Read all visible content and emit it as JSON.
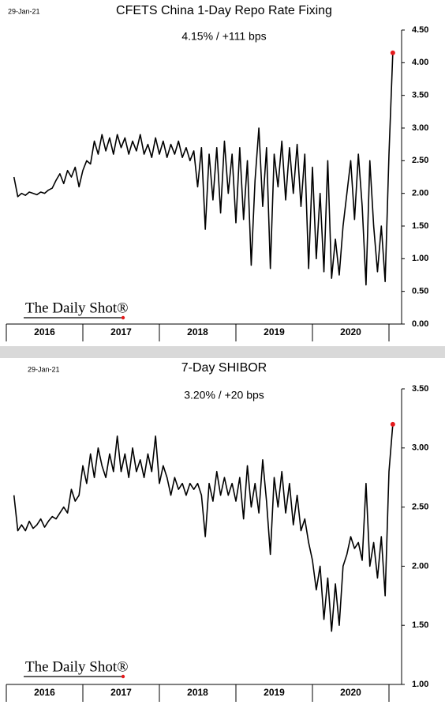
{
  "chart_data": [
    {
      "type": "line",
      "date": "29-Jan-21",
      "title": "CFETS China 1-Day Repo Rate Fixing",
      "subtitle": "4.15%  /  +111 bps",
      "logo": "The Daily Shot®",
      "x_labels": [
        "2016",
        "2017",
        "2018",
        "2019",
        "2020"
      ],
      "xlim": [
        2016,
        2021.1
      ],
      "xticks": [
        2016,
        2017,
        2018,
        2019,
        2020,
        2021
      ],
      "ylim": [
        0,
        4.5
      ],
      "yticks": [
        {
          "value": 0,
          "label": "0.00"
        },
        {
          "value": 0.5,
          "label": "0.50"
        },
        {
          "value": 1,
          "label": "1.00"
        },
        {
          "value": 1.5,
          "label": "1.50"
        },
        {
          "value": 2,
          "label": "2.00"
        },
        {
          "value": 2.5,
          "label": "2.50"
        },
        {
          "value": 3,
          "label": "3.00"
        },
        {
          "value": 3.5,
          "label": "3.50"
        },
        {
          "value": 4,
          "label": "4.00"
        },
        {
          "value": 4.5,
          "label": "4.50"
        }
      ],
      "color": "#000000",
      "end_marker_color": "#e41a1c",
      "x": [
        2016.1,
        2016.15,
        2016.2,
        2016.25,
        2016.3,
        2016.35,
        2016.4,
        2016.45,
        2016.5,
        2016.55,
        2016.6,
        2016.65,
        2016.7,
        2016.75,
        2016.8,
        2016.85,
        2016.9,
        2016.95,
        2017.0,
        2017.05,
        2017.1,
        2017.15,
        2017.2,
        2017.25,
        2017.3,
        2017.35,
        2017.4,
        2017.45,
        2017.5,
        2017.55,
        2017.6,
        2017.65,
        2017.7,
        2017.75,
        2017.8,
        2017.85,
        2017.9,
        2017.95,
        2018.0,
        2018.05,
        2018.1,
        2018.15,
        2018.2,
        2018.25,
        2018.3,
        2018.35,
        2018.4,
        2018.45,
        2018.5,
        2018.55,
        2018.6,
        2018.65,
        2018.7,
        2018.75,
        2018.8,
        2018.85,
        2018.9,
        2018.95,
        2019.0,
        2019.05,
        2019.1,
        2019.15,
        2019.2,
        2019.25,
        2019.3,
        2019.35,
        2019.4,
        2019.45,
        2019.5,
        2019.55,
        2019.6,
        2019.65,
        2019.7,
        2019.75,
        2019.8,
        2019.85,
        2019.9,
        2019.95,
        2020.0,
        2020.05,
        2020.1,
        2020.15,
        2020.2,
        2020.25,
        2020.3,
        2020.35,
        2020.4,
        2020.45,
        2020.5,
        2020.55,
        2020.6,
        2020.65,
        2020.7,
        2020.75,
        2020.8,
        2020.85,
        2020.9,
        2020.95,
        2021.0,
        2021.05
      ],
      "values": [
        2.25,
        1.95,
        2.0,
        1.97,
        2.02,
        2.0,
        1.98,
        2.02,
        2.0,
        2.05,
        2.08,
        2.2,
        2.3,
        2.15,
        2.35,
        2.25,
        2.4,
        2.1,
        2.35,
        2.5,
        2.45,
        2.8,
        2.6,
        2.9,
        2.65,
        2.85,
        2.6,
        2.9,
        2.7,
        2.85,
        2.6,
        2.8,
        2.65,
        2.9,
        2.6,
        2.75,
        2.55,
        2.85,
        2.6,
        2.8,
        2.55,
        2.75,
        2.6,
        2.8,
        2.55,
        2.7,
        2.5,
        2.65,
        2.1,
        2.7,
        1.45,
        2.6,
        1.9,
        2.7,
        1.7,
        2.8,
        2.0,
        2.6,
        1.55,
        2.7,
        1.6,
        2.5,
        0.9,
        2.2,
        3.0,
        1.8,
        2.7,
        0.85,
        2.6,
        2.1,
        2.8,
        1.9,
        2.7,
        2.0,
        2.75,
        1.8,
        2.6,
        0.85,
        2.4,
        1.0,
        2.0,
        0.8,
        2.5,
        0.7,
        1.3,
        0.75,
        1.5,
        2.0,
        2.5,
        1.6,
        2.6,
        1.8,
        0.6,
        2.5,
        1.5,
        0.8,
        1.5,
        0.65,
        2.6,
        4.15
      ]
    },
    {
      "type": "line",
      "date": "29-Jan-21",
      "title": "7-Day SHIBOR",
      "subtitle": "3.20%  /  +20 bps",
      "logo": "The Daily Shot®",
      "x_labels": [
        "2016",
        "2017",
        "2018",
        "2019",
        "2020"
      ],
      "xlim": [
        2016,
        2021.1
      ],
      "xticks": [
        2016,
        2017,
        2018,
        2019,
        2020,
        2021
      ],
      "ylim": [
        1,
        3.5
      ],
      "yticks": [
        {
          "value": 1,
          "label": "1.00"
        },
        {
          "value": 1.5,
          "label": "1.50"
        },
        {
          "value": 2,
          "label": "2.00"
        },
        {
          "value": 2.5,
          "label": "2.50"
        },
        {
          "value": 3,
          "label": "3.00"
        },
        {
          "value": 3.5,
          "label": "3.50"
        }
      ],
      "color": "#000000",
      "end_marker_color": "#e41a1c",
      "x": [
        2016.1,
        2016.15,
        2016.2,
        2016.25,
        2016.3,
        2016.35,
        2016.4,
        2016.45,
        2016.5,
        2016.55,
        2016.6,
        2016.65,
        2016.7,
        2016.75,
        2016.8,
        2016.85,
        2016.9,
        2016.95,
        2017.0,
        2017.05,
        2017.1,
        2017.15,
        2017.2,
        2017.25,
        2017.3,
        2017.35,
        2017.4,
        2017.45,
        2017.5,
        2017.55,
        2017.6,
        2017.65,
        2017.7,
        2017.75,
        2017.8,
        2017.85,
        2017.9,
        2017.95,
        2018.0,
        2018.05,
        2018.1,
        2018.15,
        2018.2,
        2018.25,
        2018.3,
        2018.35,
        2018.4,
        2018.45,
        2018.5,
        2018.55,
        2018.6,
        2018.65,
        2018.7,
        2018.75,
        2018.8,
        2018.85,
        2018.9,
        2018.95,
        2019.0,
        2019.05,
        2019.1,
        2019.15,
        2019.2,
        2019.25,
        2019.3,
        2019.35,
        2019.4,
        2019.45,
        2019.5,
        2019.55,
        2019.6,
        2019.65,
        2019.7,
        2019.75,
        2019.8,
        2019.85,
        2019.9,
        2019.95,
        2020.0,
        2020.05,
        2020.1,
        2020.15,
        2020.2,
        2020.25,
        2020.3,
        2020.35,
        2020.4,
        2020.45,
        2020.5,
        2020.55,
        2020.6,
        2020.65,
        2020.7,
        2020.75,
        2020.8,
        2020.85,
        2020.9,
        2020.95,
        2021.0,
        2021.05
      ],
      "values": [
        2.6,
        2.3,
        2.35,
        2.3,
        2.38,
        2.32,
        2.35,
        2.4,
        2.33,
        2.38,
        2.42,
        2.4,
        2.45,
        2.5,
        2.45,
        2.65,
        2.55,
        2.6,
        2.85,
        2.7,
        2.95,
        2.75,
        3.0,
        2.85,
        2.75,
        2.95,
        2.8,
        3.1,
        2.8,
        2.95,
        2.75,
        3.0,
        2.8,
        2.9,
        2.75,
        2.95,
        2.8,
        3.1,
        2.7,
        2.85,
        2.75,
        2.6,
        2.75,
        2.65,
        2.7,
        2.6,
        2.7,
        2.65,
        2.7,
        2.6,
        2.25,
        2.7,
        2.55,
        2.8,
        2.6,
        2.75,
        2.6,
        2.7,
        2.55,
        2.75,
        2.4,
        2.85,
        2.5,
        2.7,
        2.45,
        2.9,
        2.55,
        2.1,
        2.75,
        2.5,
        2.8,
        2.45,
        2.7,
        2.35,
        2.6,
        2.3,
        2.4,
        2.2,
        2.05,
        1.8,
        2.0,
        1.55,
        1.9,
        1.45,
        1.85,
        1.5,
        2.0,
        2.1,
        2.25,
        2.15,
        2.2,
        2.05,
        2.7,
        2.0,
        2.2,
        1.9,
        2.25,
        1.75,
        2.8,
        3.2
      ]
    }
  ]
}
